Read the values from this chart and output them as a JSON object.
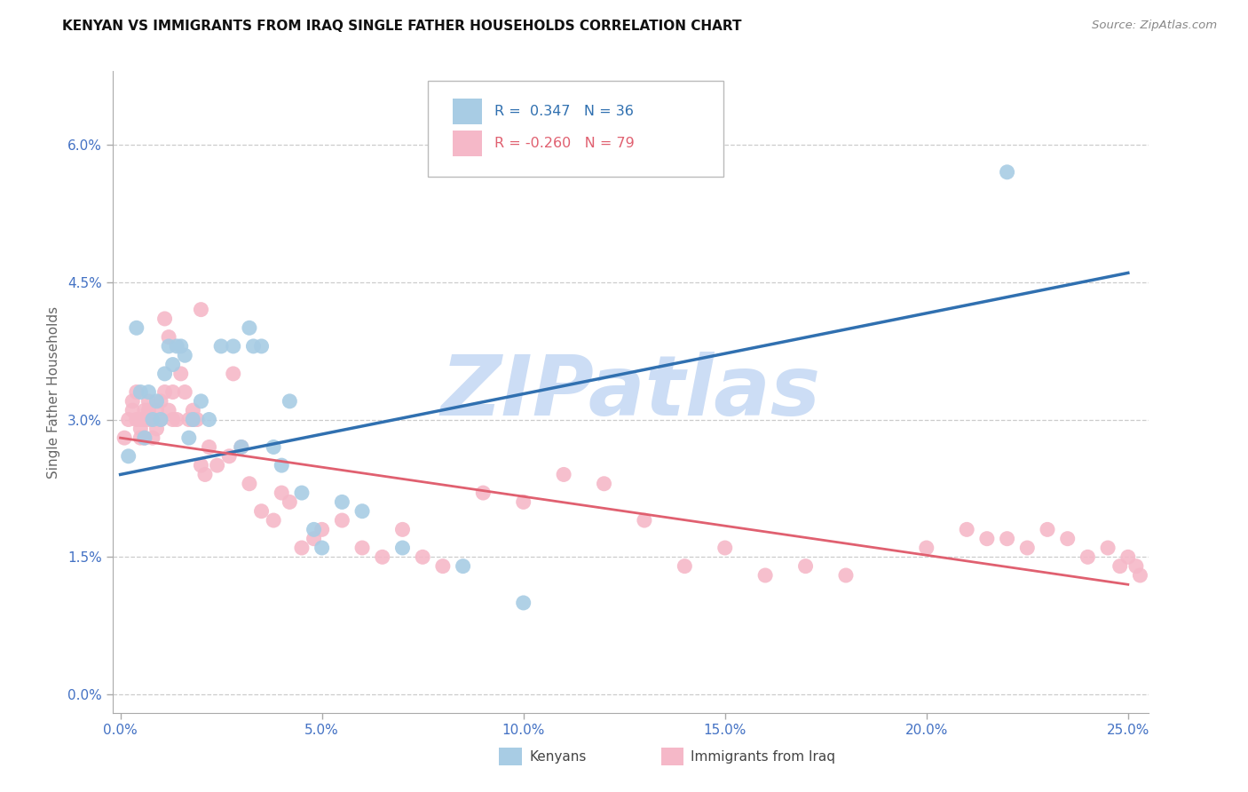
{
  "title": "KENYAN VS IMMIGRANTS FROM IRAQ SINGLE FATHER HOUSEHOLDS CORRELATION CHART",
  "source": "Source: ZipAtlas.com",
  "ylabel": "Single Father Households",
  "xlim": [
    -0.002,
    0.255
  ],
  "ylim": [
    -0.002,
    0.068
  ],
  "xlabel_vals": [
    0.0,
    0.05,
    0.1,
    0.15,
    0.2,
    0.25
  ],
  "xlabel_ticks": [
    "0.0%",
    "5.0%",
    "10.0%",
    "15.0%",
    "20.0%",
    "25.0%"
  ],
  "ylabel_vals": [
    0.0,
    0.015,
    0.03,
    0.045,
    0.06
  ],
  "ylabel_ticks": [
    "0.0%",
    "1.5%",
    "3.0%",
    "4.5%",
    "6.0%"
  ],
  "blue_color": "#a8cce4",
  "pink_color": "#f5b8c8",
  "blue_line_color": "#3070b0",
  "pink_line_color": "#e06070",
  "axis_tick_color": "#4472c4",
  "ylabel_color": "#666666",
  "grid_color": "#cccccc",
  "title_color": "#111111",
  "source_color": "#888888",
  "watermark_color": "#ccddf5",
  "blue_x": [
    0.002,
    0.004,
    0.005,
    0.006,
    0.007,
    0.008,
    0.009,
    0.01,
    0.011,
    0.012,
    0.013,
    0.014,
    0.015,
    0.016,
    0.017,
    0.018,
    0.02,
    0.022,
    0.025,
    0.028,
    0.03,
    0.032,
    0.033,
    0.035,
    0.038,
    0.04,
    0.042,
    0.045,
    0.048,
    0.05,
    0.055,
    0.06,
    0.07,
    0.085,
    0.1,
    0.22
  ],
  "blue_y": [
    0.026,
    0.04,
    0.033,
    0.028,
    0.033,
    0.03,
    0.032,
    0.03,
    0.035,
    0.038,
    0.036,
    0.038,
    0.038,
    0.037,
    0.028,
    0.03,
    0.032,
    0.03,
    0.038,
    0.038,
    0.027,
    0.04,
    0.038,
    0.038,
    0.027,
    0.025,
    0.032,
    0.022,
    0.018,
    0.016,
    0.021,
    0.02,
    0.016,
    0.014,
    0.01,
    0.057
  ],
  "pink_x": [
    0.001,
    0.002,
    0.003,
    0.003,
    0.004,
    0.004,
    0.005,
    0.005,
    0.005,
    0.006,
    0.006,
    0.006,
    0.007,
    0.007,
    0.007,
    0.008,
    0.008,
    0.009,
    0.009,
    0.01,
    0.01,
    0.011,
    0.011,
    0.012,
    0.012,
    0.013,
    0.013,
    0.014,
    0.015,
    0.016,
    0.017,
    0.018,
    0.018,
    0.019,
    0.02,
    0.02,
    0.021,
    0.022,
    0.024,
    0.027,
    0.028,
    0.03,
    0.032,
    0.035,
    0.038,
    0.04,
    0.042,
    0.045,
    0.048,
    0.05,
    0.055,
    0.06,
    0.065,
    0.07,
    0.075,
    0.08,
    0.09,
    0.1,
    0.11,
    0.12,
    0.13,
    0.14,
    0.15,
    0.16,
    0.17,
    0.18,
    0.2,
    0.21,
    0.215,
    0.22,
    0.225,
    0.23,
    0.235,
    0.24,
    0.245,
    0.248,
    0.25,
    0.252,
    0.253
  ],
  "pink_y": [
    0.028,
    0.03,
    0.031,
    0.032,
    0.03,
    0.033,
    0.029,
    0.03,
    0.028,
    0.031,
    0.03,
    0.028,
    0.032,
    0.03,
    0.031,
    0.03,
    0.028,
    0.031,
    0.029,
    0.03,
    0.032,
    0.041,
    0.033,
    0.039,
    0.031,
    0.03,
    0.033,
    0.03,
    0.035,
    0.033,
    0.03,
    0.03,
    0.031,
    0.03,
    0.042,
    0.025,
    0.024,
    0.027,
    0.025,
    0.026,
    0.035,
    0.027,
    0.023,
    0.02,
    0.019,
    0.022,
    0.021,
    0.016,
    0.017,
    0.018,
    0.019,
    0.016,
    0.015,
    0.018,
    0.015,
    0.014,
    0.022,
    0.021,
    0.024,
    0.023,
    0.019,
    0.014,
    0.016,
    0.013,
    0.014,
    0.013,
    0.016,
    0.018,
    0.017,
    0.017,
    0.016,
    0.018,
    0.017,
    0.015,
    0.016,
    0.014,
    0.015,
    0.014,
    0.013
  ],
  "blue_line_x0": 0.0,
  "blue_line_y0": 0.024,
  "blue_line_x1": 0.25,
  "blue_line_y1": 0.046,
  "pink_line_x0": 0.0,
  "pink_line_y0": 0.028,
  "pink_line_x1": 0.25,
  "pink_line_y1": 0.012
}
